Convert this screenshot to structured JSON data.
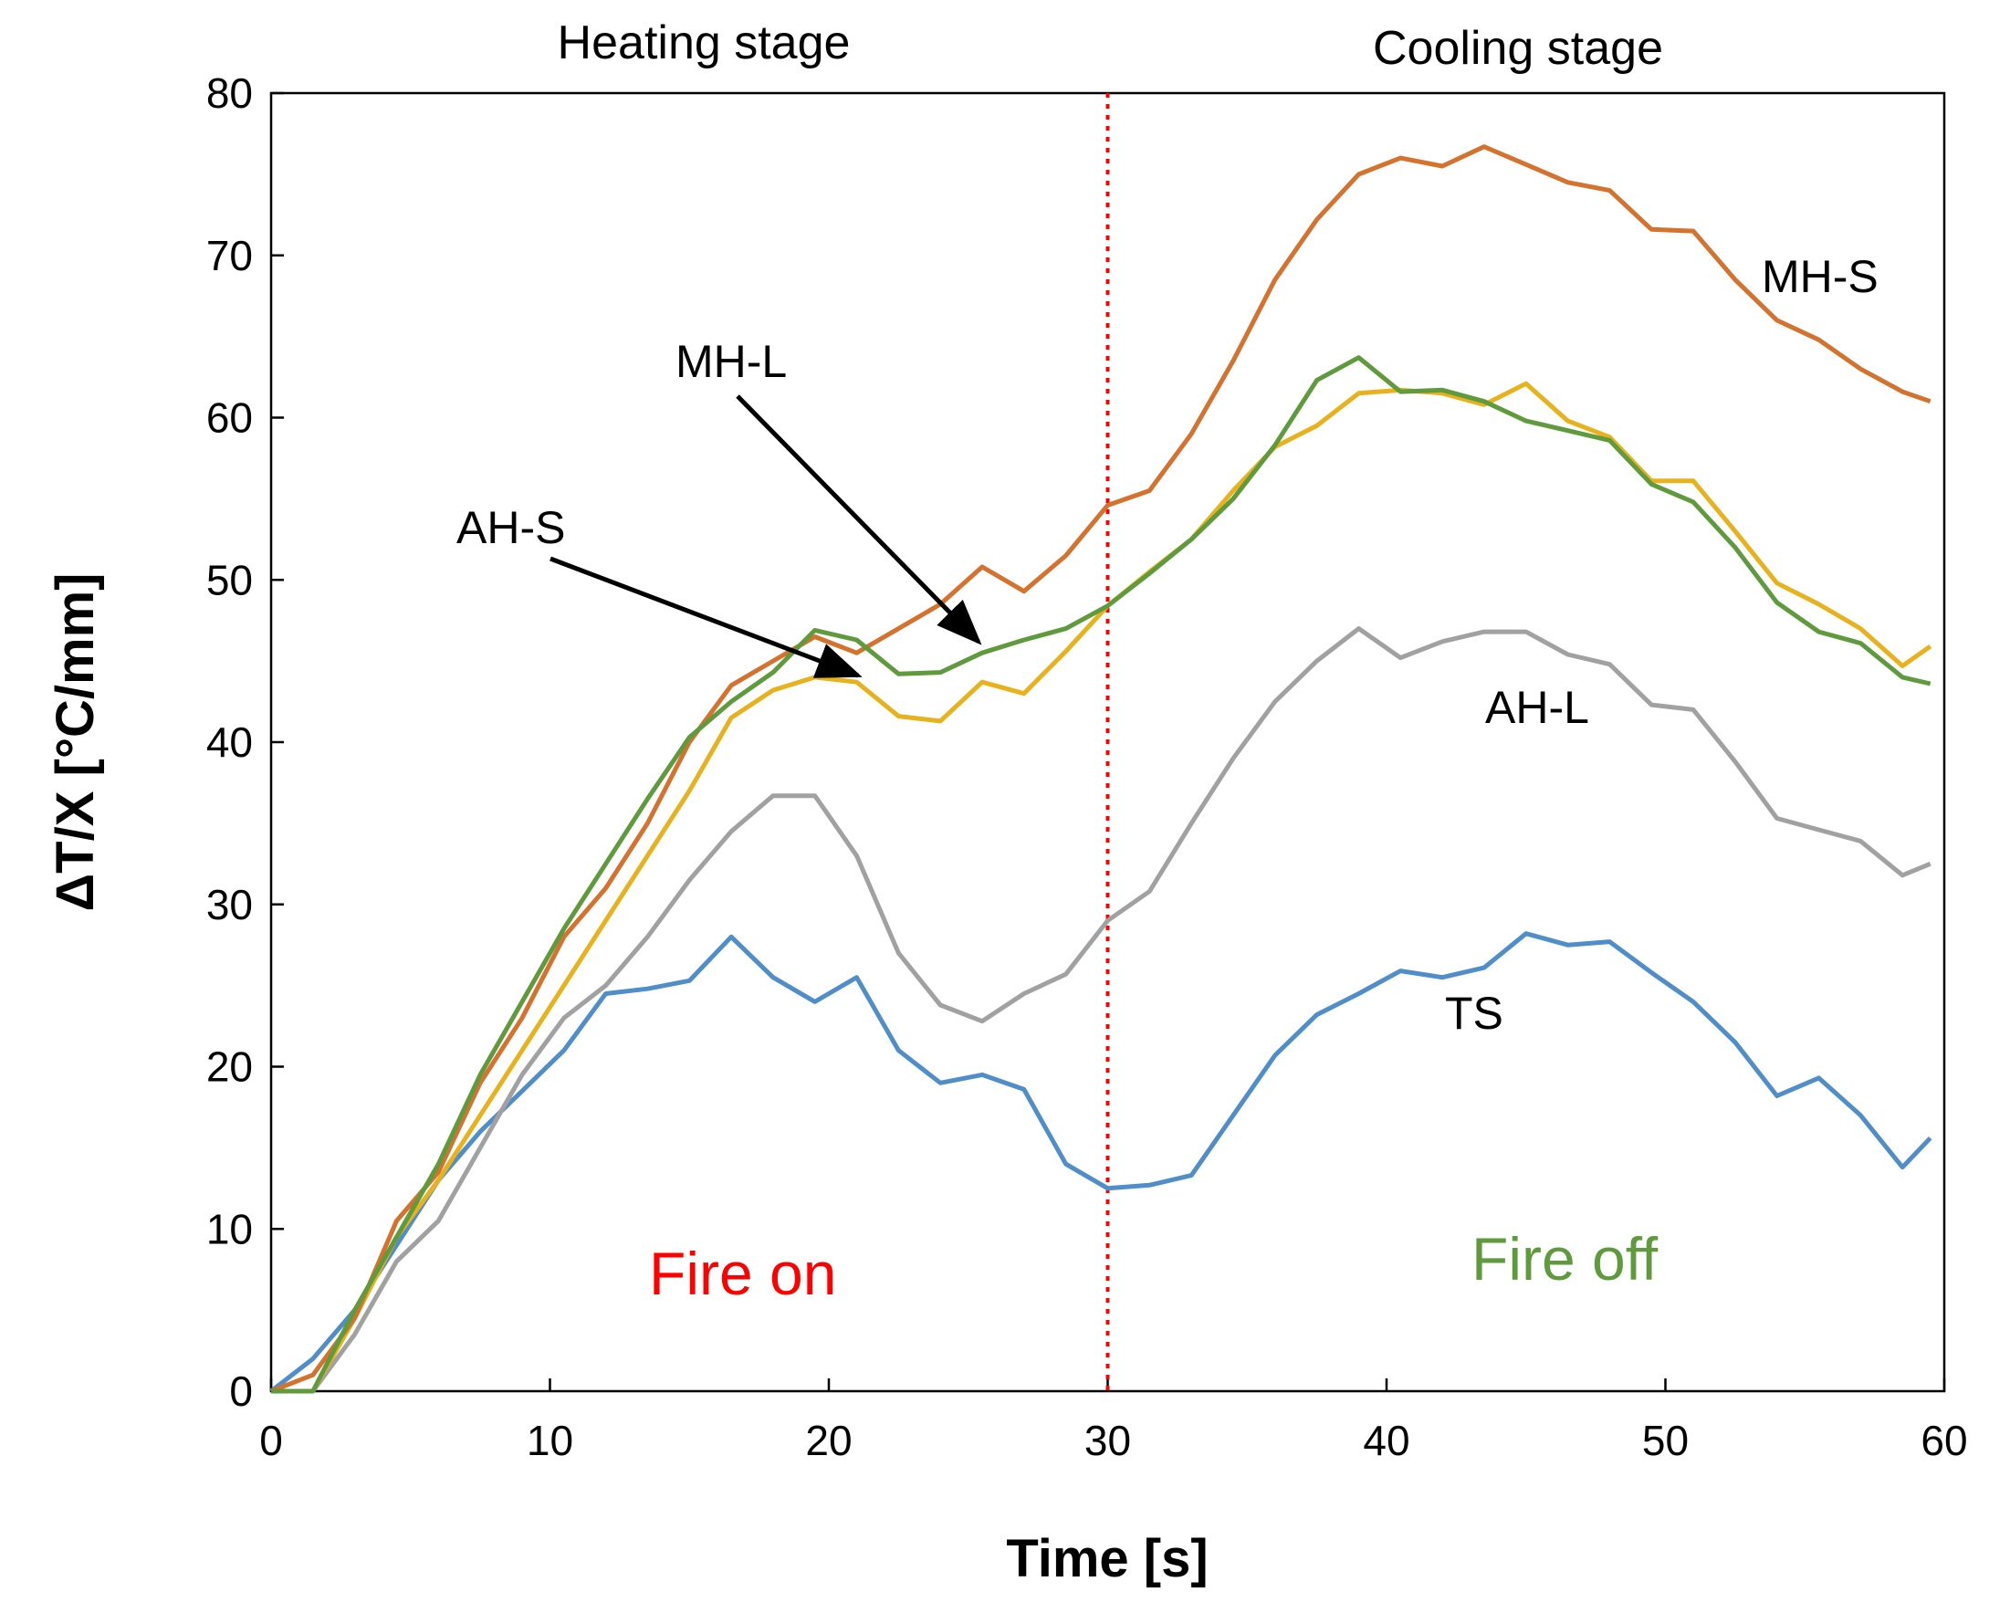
{
  "chart_data": {
    "type": "line",
    "xlabel": "Time [s]",
    "ylabel": "ΔT/X [°C/mm]",
    "xlim": [
      0,
      60
    ],
    "ylim": [
      0,
      80
    ],
    "xticks": [
      0,
      10,
      20,
      30,
      40,
      50,
      60
    ],
    "yticks": [
      0,
      10,
      20,
      30,
      40,
      50,
      60,
      70,
      80
    ],
    "grid": false,
    "x": [
      0,
      1.5,
      3,
      4.5,
      6,
      7.5,
      9,
      10.5,
      12,
      13.5,
      15,
      16.5,
      18,
      19.5,
      21,
      22.5,
      24,
      25.5,
      27,
      28.5,
      30,
      31.5,
      33,
      34.5,
      36,
      37.5,
      39,
      40.5,
      42,
      43.5,
      45,
      46.5,
      48,
      49.5,
      51,
      52.5,
      54,
      55.5,
      57,
      58.5,
      59.5
    ],
    "series": [
      {
        "name": "MH-S",
        "color": "#d4722e",
        "values": [
          0,
          1,
          4.5,
          10.5,
          13.5,
          19,
          23,
          28,
          31,
          35,
          40,
          43.5,
          45,
          46.5,
          45.5,
          47,
          48.5,
          50.8,
          49.3,
          51.5,
          54.6,
          55.5,
          59,
          63.5,
          68.5,
          72.2,
          75,
          76,
          75.5,
          76.7,
          75.6,
          74.5,
          74,
          71.6,
          71.5,
          68.5,
          66,
          64.8,
          63,
          61.6,
          61
        ]
      },
      {
        "name": "MH-L",
        "color": "#5f9a3c",
        "values": [
          0,
          0,
          5,
          9.5,
          14,
          19.5,
          24,
          28.5,
          32.5,
          36.5,
          40.3,
          42.5,
          44.3,
          46.9,
          46.3,
          44.2,
          44.3,
          45.5,
          46.3,
          47,
          48.4,
          50.4,
          52.5,
          55,
          58.3,
          62.3,
          63.7,
          61.6,
          61.7,
          61,
          59.8,
          59.2,
          58.6,
          55.9,
          54.8,
          52,
          48.6,
          46.8,
          46.1,
          44,
          43.6
        ]
      },
      {
        "name": "AH-S",
        "color": "#e8b21c",
        "values": [
          0,
          0,
          4.5,
          9.5,
          13,
          17,
          21,
          25,
          29,
          33,
          37,
          41.5,
          43.2,
          44,
          43.7,
          41.6,
          41.3,
          43.7,
          43,
          45.6,
          48.4,
          50.5,
          52.5,
          55.5,
          58.2,
          59.5,
          61.5,
          61.7,
          61.5,
          60.8,
          62.1,
          59.8,
          58.8,
          56.1,
          56.1,
          53,
          49.8,
          48.5,
          47,
          44.7,
          45.9
        ]
      },
      {
        "name": "AH-L",
        "color": "#a1a1a1",
        "values": [
          0,
          0,
          3.5,
          8,
          10.5,
          15,
          19.5,
          23,
          25,
          28,
          31.5,
          34.5,
          36.7,
          36.7,
          33,
          27,
          23.8,
          22.8,
          24.5,
          25.7,
          29,
          30.8,
          35,
          39,
          42.5,
          45,
          47,
          45.2,
          46.2,
          46.8,
          46.8,
          45.4,
          44.8,
          42.3,
          42,
          38.8,
          35.3,
          34.6,
          33.9,
          31.8,
          32.5
        ]
      },
      {
        "name": "TS",
        "color": "#4f8ec9",
        "values": [
          0,
          2,
          5,
          9,
          13,
          16,
          18.5,
          21,
          24.5,
          24.8,
          25.3,
          28,
          25.5,
          24,
          25.5,
          21,
          19,
          19.5,
          18.6,
          14,
          12.5,
          12.7,
          13.3,
          17,
          20.7,
          23.2,
          24.5,
          25.9,
          25.5,
          26.1,
          28.2,
          27.5,
          27.7,
          25.8,
          24,
          21.5,
          18.2,
          19.3,
          17,
          13.8,
          15.6
        ]
      }
    ],
    "series_labels": [
      "MH-S",
      "MH-L",
      "AH-S",
      "AH-L",
      "TS"
    ],
    "vline": {
      "x": 30,
      "color": "#ff0000",
      "style": "dotted"
    },
    "annotations": {
      "heating_stage": "Heating stage",
      "cooling_stage": "Cooling stage",
      "fire_on": "Fire on",
      "fire_off": "Fire off"
    },
    "colors": {
      "fire_on": "#ff0000",
      "fire_off": "#5f9a3c"
    }
  }
}
